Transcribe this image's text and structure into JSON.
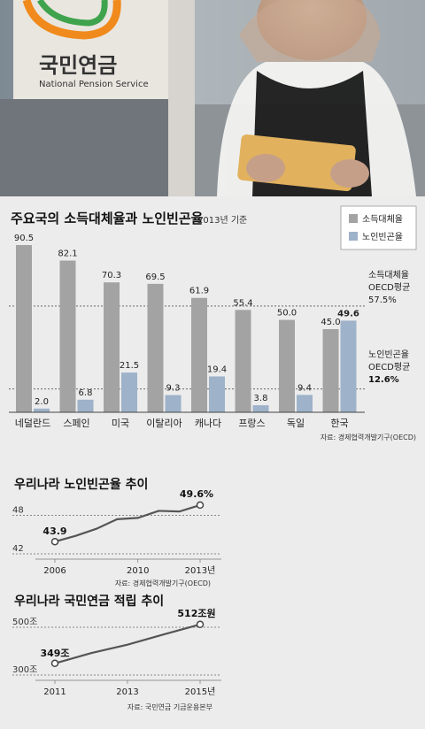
{
  "photo": {
    "sign_text": "국민연금",
    "sign_subtitle": "National Pension Service"
  },
  "colors": {
    "replacement": "#a3a3a3",
    "poverty": "#9eb2c9",
    "line": "#555555",
    "background": "#ececec"
  },
  "chart_data": [
    {
      "type": "bar",
      "title": "주요국의 소득대체율과 노인빈곤율",
      "subtitle": "2013년 기준",
      "categories": [
        "네덜란드",
        "스페인",
        "미국",
        "이탈리아",
        "캐나다",
        "프랑스",
        "독일",
        "한국"
      ],
      "series": [
        {
          "name": "소득대체율",
          "values": [
            90.5,
            82.1,
            70.3,
            69.5,
            61.9,
            55.4,
            50.0,
            45.0
          ]
        },
        {
          "name": "노인빈곤율",
          "values": [
            2.0,
            6.8,
            21.5,
            9.3,
            19.4,
            3.8,
            9.4,
            49.6
          ]
        }
      ],
      "value_labels": {
        "replacement": [
          "90.5",
          "82.1",
          "70.3",
          "69.5",
          "61.9",
          "55.4",
          "50.0",
          "45.0"
        ],
        "poverty": [
          "2.0",
          "6.8",
          "21.5",
          "9.3",
          "19.4",
          "3.8",
          "9.4",
          "49.6"
        ]
      },
      "reference_lines": [
        {
          "label": "소득대체율",
          "label2": "OECD평균",
          "value_label": "57.5%",
          "value": 57.5
        },
        {
          "label": "노인빈곤율",
          "label2": "OECD평균",
          "value_label": "12.6%",
          "value": 12.6
        }
      ],
      "ylim": [
        0,
        100
      ],
      "legend_position": "top-right",
      "source": "자료: 경제협력개발기구(OECD)"
    },
    {
      "type": "line",
      "title": "우리나라 노인빈곤율 추이",
      "x": [
        2006,
        2007,
        2008,
        2009,
        2010,
        2011,
        2012,
        2013
      ],
      "values": [
        43.9,
        44.8,
        45.9,
        47.4,
        47.6,
        48.7,
        48.6,
        49.6
      ],
      "ylim": [
        42,
        50
      ],
      "ytick_labels": [
        "48",
        "42"
      ],
      "yticks": [
        48,
        42
      ],
      "xtick_labels": [
        "2006",
        "2010",
        "2013년"
      ],
      "xticks": [
        2006,
        2010,
        2013
      ],
      "start_label": "43.9",
      "end_label": "49.6%",
      "source": "자료: 경제협력개발기구(OECD)"
    },
    {
      "type": "line",
      "title": "우리나라 국민연금 적립 추이",
      "x": [
        2011,
        2012,
        2013,
        2014,
        2015
      ],
      "values": [
        349,
        392,
        427,
        470,
        512
      ],
      "ylim": [
        300,
        500
      ],
      "ytick_labels": [
        "500조",
        "300조"
      ],
      "yticks": [
        500,
        300
      ],
      "xtick_labels": [
        "2011",
        "2013",
        "2015년"
      ],
      "xticks": [
        2011,
        2013,
        2015
      ],
      "start_label": "349조",
      "end_label": "512조원",
      "source": "자료: 국민연금 기금운용본부"
    }
  ]
}
